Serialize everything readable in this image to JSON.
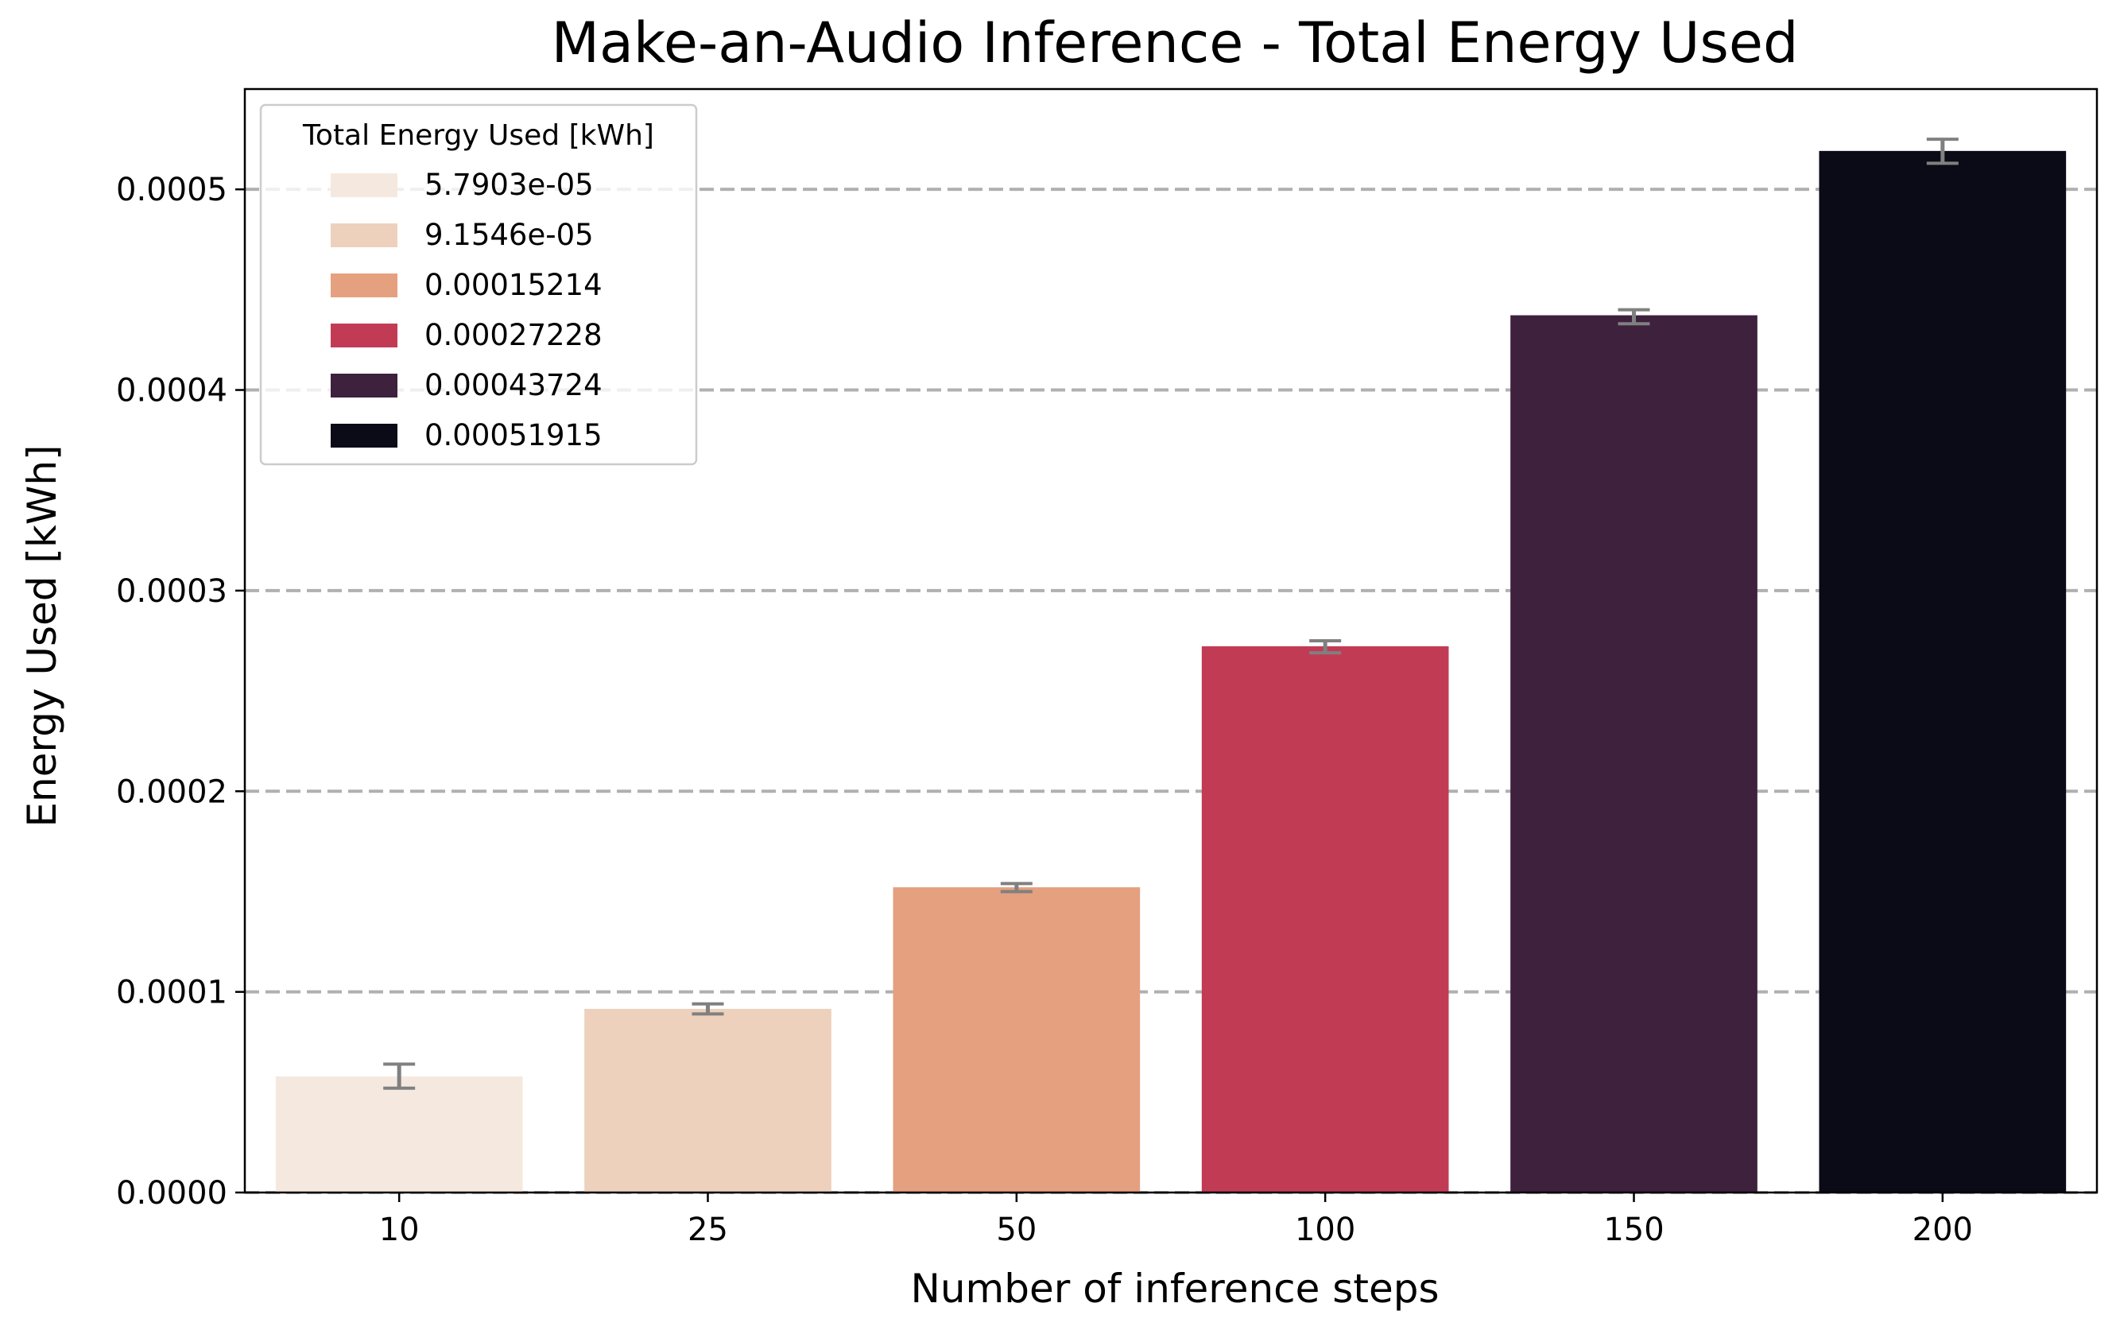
{
  "chart_data": {
    "type": "bar",
    "title": "Make-an-Audio Inference - Total Energy Used",
    "xlabel": "Number of inference steps",
    "ylabel": "Energy Used [kWh]",
    "categories": [
      "10",
      "25",
      "50",
      "100",
      "150",
      "200"
    ],
    "values": [
      5.7903e-05,
      9.1546e-05,
      0.00015214,
      0.00027228,
      0.00043724,
      0.00051915
    ],
    "error_bars": [
      [
        5.2e-05,
        6.4e-05
      ],
      [
        8.9e-05,
        9.4e-05
      ],
      [
        0.00015,
        0.000154
      ],
      [
        0.000269,
        0.000275
      ],
      [
        0.000433,
        0.00044
      ],
      [
        0.000513,
        0.000525
      ]
    ],
    "error_bar_color": "#808080",
    "colors": [
      "#f5e9df",
      "#edd1bd",
      "#e5a07f",
      "#c23b55",
      "#3d213d",
      "#0b0a17"
    ],
    "ylim": [
      0,
      0.00055
    ],
    "yticks": [
      0.0,
      0.0001,
      0.0002,
      0.0003,
      0.0004,
      0.0005
    ],
    "ytick_labels": [
      "0.0000",
      "0.0001",
      "0.0002",
      "0.0003",
      "0.0004",
      "0.0005"
    ],
    "grid": "y-dashed",
    "grid_color": "#b0b0b0",
    "legend": {
      "title": "Total Energy Used [kWh]",
      "position": "upper-left",
      "labels": [
        "5.7903e-05",
        "9.1546e-05",
        "0.00015214",
        "0.00027228",
        "0.00043724",
        "0.00051915"
      ]
    }
  }
}
